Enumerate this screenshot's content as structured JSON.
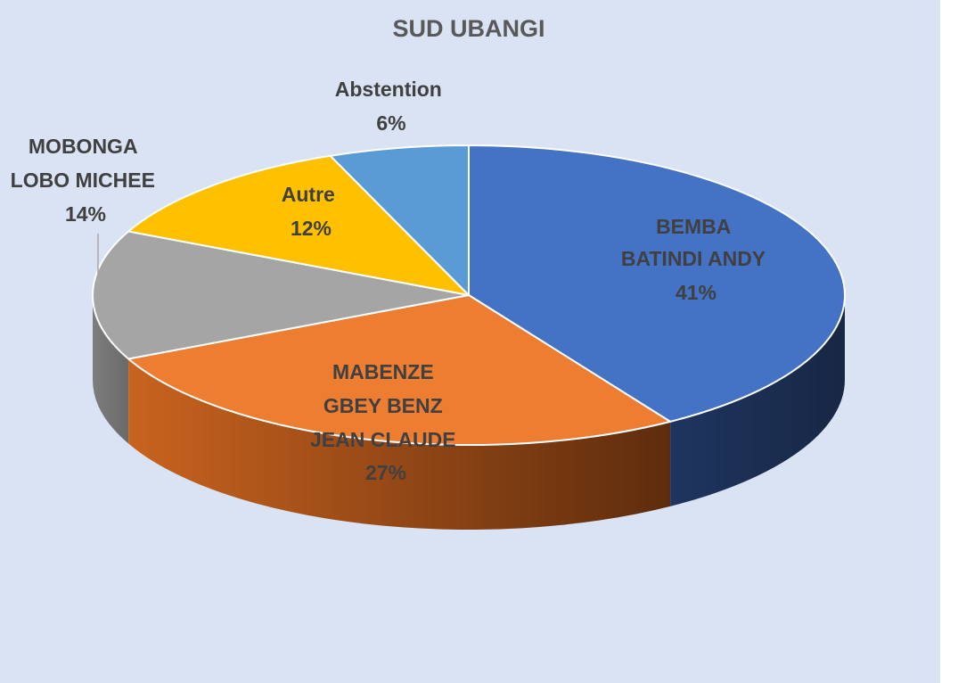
{
  "chart_data": {
    "type": "pie",
    "title": "SUD UBANGI",
    "slices": [
      {
        "label_lines": [
          "BEMBA",
          "BATINDI ANDY"
        ],
        "percent_label": "41%",
        "value": 41,
        "color": "#4472c4",
        "side_color": "#1c2e52"
      },
      {
        "label_lines": [
          "MABENZE",
          "GBEY BENZ",
          "JEAN CLAUDE"
        ],
        "percent_label": "27%",
        "value": 27,
        "color": "#ed7d31",
        "side_color": "#7a3a12"
      },
      {
        "label_lines": [
          "MOBONGA",
          "LOBO MICHEE"
        ],
        "percent_label": "14%",
        "value": 14,
        "color": "#a5a5a5",
        "side_color": "#5a5a5a"
      },
      {
        "label_lines": [
          "Autre"
        ],
        "percent_label": "12%",
        "value": 12,
        "color": "#ffc000",
        "side_color": "#8a6800"
      },
      {
        "label_lines": [
          "Abstention"
        ],
        "percent_label": "6%",
        "value": 6,
        "color": "#5b9bd5",
        "side_color": "#2e5a82"
      }
    ],
    "background_color": "#d9e3f3",
    "title_color": "#595959",
    "label_color": "#404040",
    "style": "3d-exploded-none",
    "legend": "none"
  }
}
